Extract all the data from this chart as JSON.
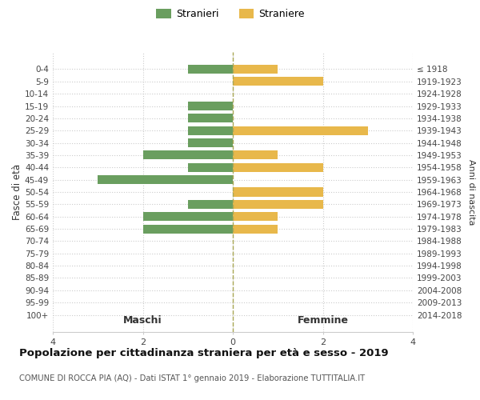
{
  "age_groups": [
    "0-4",
    "5-9",
    "10-14",
    "15-19",
    "20-24",
    "25-29",
    "30-34",
    "35-39",
    "40-44",
    "45-49",
    "50-54",
    "55-59",
    "60-64",
    "65-69",
    "70-74",
    "75-79",
    "80-84",
    "85-89",
    "90-94",
    "95-99",
    "100+"
  ],
  "birth_years": [
    "2014-2018",
    "2009-2013",
    "2004-2008",
    "1999-2003",
    "1994-1998",
    "1989-1993",
    "1984-1988",
    "1979-1983",
    "1974-1978",
    "1969-1973",
    "1964-1968",
    "1959-1963",
    "1954-1958",
    "1949-1953",
    "1944-1948",
    "1939-1943",
    "1934-1938",
    "1929-1933",
    "1924-1928",
    "1919-1923",
    "≤ 1918"
  ],
  "maschi": [
    1,
    0,
    0,
    1,
    1,
    1,
    1,
    2,
    1,
    3,
    0,
    1,
    2,
    2,
    0,
    0,
    0,
    0,
    0,
    0,
    0
  ],
  "femmine": [
    1,
    2,
    0,
    0,
    0,
    3,
    0,
    1,
    2,
    0,
    2,
    2,
    1,
    1,
    0,
    0,
    0,
    0,
    0,
    0,
    0
  ],
  "color_maschi": "#6a9e5f",
  "color_femmine": "#e8b84b",
  "title": "Popolazione per cittadinanza straniera per età e sesso - 2019",
  "subtitle": "COMUNE DI ROCCA PIA (AQ) - Dati ISTAT 1° gennaio 2019 - Elaborazione TUTTITALIA.IT",
  "xlabel_maschi": "Maschi",
  "xlabel_femmine": "Femmine",
  "ylabel": "Fasce di età",
  "ylabel_right": "Anni di nascita",
  "legend_maschi": "Stranieri",
  "legend_femmine": "Straniere",
  "xlim": 4,
  "background_color": "#ffffff",
  "grid_color": "#cccccc"
}
